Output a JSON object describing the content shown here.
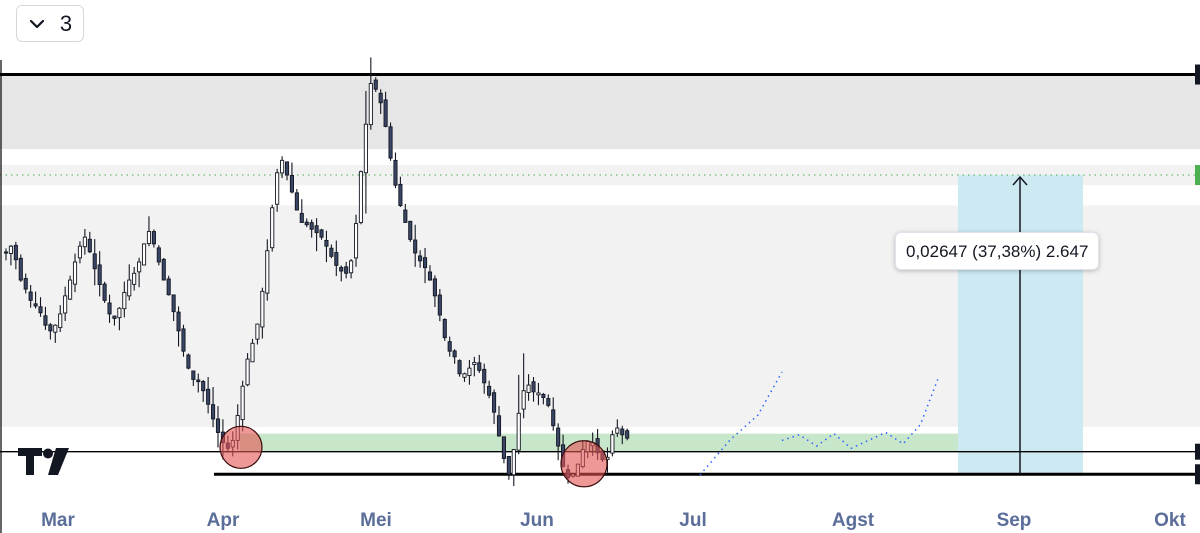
{
  "toolbar": {
    "collapse_icon": "chevron-down-icon",
    "count": "3"
  },
  "logo": {
    "icon": "tradingview-logo-icon"
  },
  "measure": {
    "label": "0,02647 (37,38%) 2.647",
    "fill_color": "#cdeaf2",
    "arrow_icon": "arrow-up-icon"
  },
  "chart_data": {
    "type": "candlestick",
    "x_axis": {
      "tick_labels": [
        "Mar",
        "Apr",
        "Mei",
        "Jun",
        "Jul",
        "Agst",
        "Sep",
        "Okt"
      ]
    },
    "y_axis": {
      "labels_visible": false,
      "range": [
        0.0656,
        0.1128
      ]
    },
    "levels": {
      "upper_line": 0.1062,
      "mid_line": 0.0728,
      "lower_line": 0.0708,
      "dotted_level": 0.0973
    },
    "zones": {
      "supply_zone": [
        0.0964,
        0.0982
      ],
      "grey_top": [
        0.0996,
        0.1062
      ],
      "support_zone": [
        0.0728,
        0.0744
      ]
    },
    "touch_circles": [
      {
        "x": "Apr",
        "price": 0.0731
      },
      {
        "x": "Jun",
        "price": 0.0712
      }
    ],
    "projection": [
      0.0738,
      0.0743,
      0.0733,
      0.0744,
      0.0731,
      0.0738,
      0.0745,
      0.0735,
      0.0752,
      0.0792
    ],
    "candles": {
      "x_start": "Feb 27",
      "closes": [
        0.0904,
        0.091,
        0.0898,
        0.088,
        0.0872,
        0.0862,
        0.0857,
        0.0851,
        0.084,
        0.0835,
        0.084,
        0.085,
        0.0866,
        0.088,
        0.0896,
        0.091,
        0.0918,
        0.0905,
        0.089,
        0.0876,
        0.0862,
        0.085,
        0.0846,
        0.0855,
        0.0869,
        0.088,
        0.0886,
        0.0896,
        0.0912,
        0.0923,
        0.0912,
        0.0896,
        0.088,
        0.0867,
        0.0852,
        0.0835,
        0.0817,
        0.0802,
        0.0792,
        0.079,
        0.0782,
        0.077,
        0.0757,
        0.0745,
        0.0736,
        0.0731,
        0.0738,
        0.076,
        0.0786,
        0.081,
        0.0824,
        0.0841,
        0.087,
        0.0906,
        0.0944,
        0.0975,
        0.0986,
        0.0973,
        0.0958,
        0.0942,
        0.0931,
        0.0929,
        0.0925,
        0.0922,
        0.0918,
        0.091,
        0.0901,
        0.0893,
        0.0888,
        0.0886,
        0.0897,
        0.093,
        0.0976,
        0.1018,
        0.1054,
        0.1049,
        0.1037,
        0.1016,
        0.0988,
        0.0964,
        0.0946,
        0.0931,
        0.0916,
        0.0904,
        0.0897,
        0.0891,
        0.088,
        0.0866,
        0.0849,
        0.0829,
        0.0817,
        0.0812,
        0.0797,
        0.0797,
        0.0802,
        0.0807,
        0.08,
        0.0789,
        0.0778,
        0.0763,
        0.0742,
        0.0722,
        0.0708,
        0.073,
        0.0762,
        0.0782,
        0.0787,
        0.0781,
        0.078,
        0.0776,
        0.0769,
        0.0751,
        0.0733,
        0.0715,
        0.0705,
        0.0708,
        0.0717,
        0.073,
        0.0737,
        0.0736,
        0.0727,
        0.0721,
        0.0723,
        0.0743,
        0.0749,
        0.0743,
        0.074
      ]
    }
  }
}
